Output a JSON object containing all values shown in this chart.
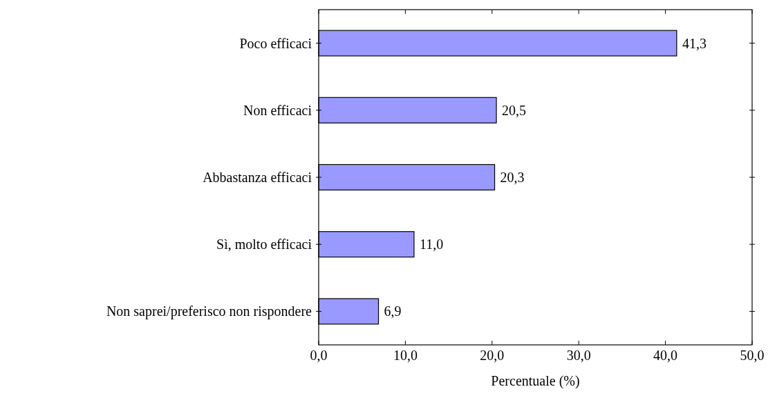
{
  "chart_data": {
    "type": "bar",
    "orientation": "horizontal",
    "xlabel": "Percentuale (%)",
    "categories": [
      "Poco efficaci",
      "Non efficaci",
      "Abbastanza efficaci",
      "Sì, molto efficaci",
      "Non saprei/preferisco non rispondere"
    ],
    "values": [
      41.3,
      20.5,
      20.3,
      11.0,
      6.9
    ],
    "value_labels": [
      "41,3",
      "20,5",
      "20,3",
      "11,0",
      "6,9"
    ],
    "color": "#9999ff",
    "xlim": [
      0,
      50
    ],
    "xticks": [
      {
        "value": 0,
        "label": "0,0"
      },
      {
        "value": 10,
        "label": "10,0"
      },
      {
        "value": 20,
        "label": "20,0"
      },
      {
        "value": 30,
        "label": "30,0"
      },
      {
        "value": 40,
        "label": "40,0"
      },
      {
        "value": 50,
        "label": "50,0"
      }
    ],
    "grid": false
  }
}
